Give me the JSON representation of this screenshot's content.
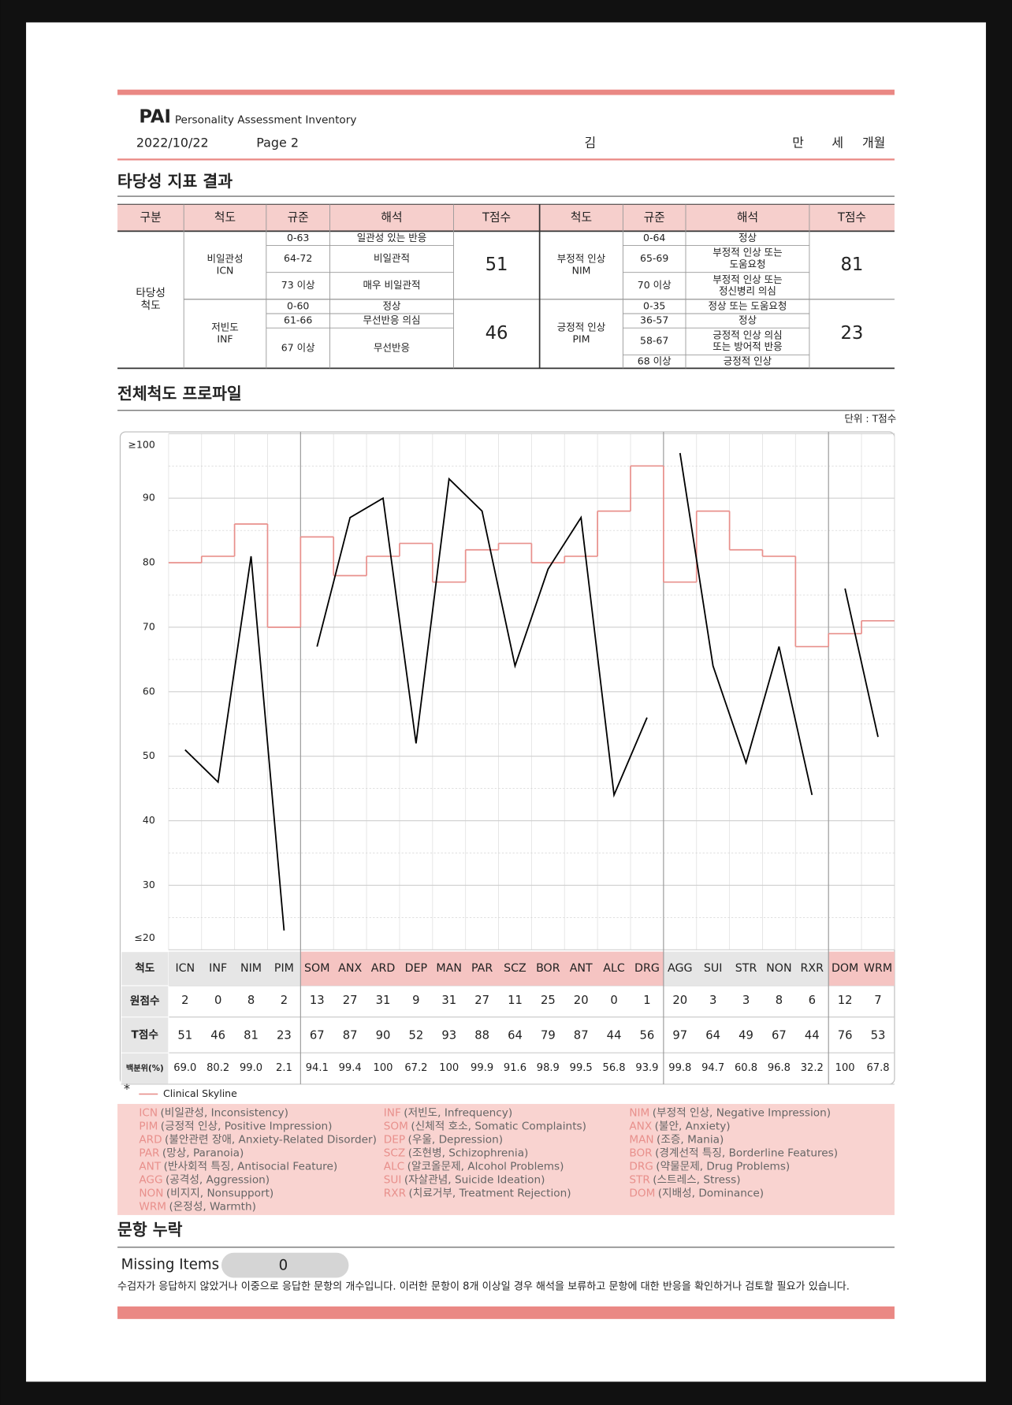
{
  "header": {
    "logo": "PAI",
    "subtitle": "Personality Assessment Inventory",
    "date": "2022/10/22",
    "page": "Page 2",
    "name": "김",
    "age_labels": [
      "만",
      "세",
      "개월"
    ]
  },
  "validity": {
    "title": "타당성 지표 결과",
    "columns": [
      "구분",
      "척도",
      "규준",
      "해석",
      "T점수",
      "척도",
      "규준",
      "해석",
      "T점수"
    ],
    "category": [
      "타당성",
      "척도"
    ],
    "scales": [
      {
        "name": [
          "비일관성",
          "ICN"
        ],
        "t_score": 51,
        "norms": [
          {
            "range": "0-63",
            "interpretation": [
              "일관성 있는 반응"
            ]
          },
          {
            "range": "64-72",
            "interpretation": [
              "비일관적"
            ]
          },
          {
            "range": "73 이상",
            "interpretation": [
              "매우 비일관적"
            ]
          }
        ]
      },
      {
        "name": [
          "저빈도",
          "INF"
        ],
        "t_score": 46,
        "norms": [
          {
            "range": "0-60",
            "interpretation": [
              "정상"
            ]
          },
          {
            "range": "61-66",
            "interpretation": [
              "무선반응 의심"
            ]
          },
          {
            "range": "67 이상",
            "interpretation": [
              "무선반응"
            ]
          }
        ]
      },
      {
        "name": [
          "부정적 인상",
          "NIM"
        ],
        "t_score": 81,
        "norms": [
          {
            "range": "0-64",
            "interpretation": [
              "정상"
            ]
          },
          {
            "range": "65-69",
            "interpretation": [
              "부정적 인상 또는",
              "도움요청"
            ]
          },
          {
            "range": "70 이상",
            "interpretation": [
              "부정적 인상 또는",
              "정신병리 의심"
            ]
          }
        ]
      },
      {
        "name": [
          "긍정적 인상",
          "PIM"
        ],
        "t_score": 23,
        "norms": [
          {
            "range": "0-35",
            "interpretation": [
              "정상 또는 도움요청"
            ]
          },
          {
            "range": "36-57",
            "interpretation": [
              "정상"
            ]
          },
          {
            "range": "58-67",
            "interpretation": [
              "긍정적 인상 의심",
              "또는 방어적 반응"
            ]
          },
          {
            "range": "68 이상",
            "interpretation": [
              "긍정적 인상"
            ]
          }
        ]
      }
    ]
  },
  "chart_data": {
    "type": "line",
    "title": "전체척도 프로파일",
    "unit_label": "단위 : T점수",
    "row_labels": [
      "척도",
      "원점수",
      "T점수",
      "백분위(%)"
    ],
    "categories": [
      [
        "ICN",
        "INF",
        "NIM",
        "PIM"
      ],
      [
        "SOM",
        "ANX",
        "ARD",
        "DEP",
        "MAN",
        "PAR",
        "SCZ",
        "BOR",
        "ANT",
        "ALC",
        "DRG"
      ],
      [
        "AGG",
        "SUI",
        "STR",
        "NON",
        "RXR"
      ],
      [
        "DOM",
        "WRM"
      ]
    ],
    "ylim": [
      20,
      100
    ],
    "yticks": [
      {
        "value": 100,
        "label": "≥100"
      },
      90,
      80,
      70,
      60,
      50,
      40,
      30,
      {
        "value": 20,
        "label": "≤20"
      }
    ],
    "grid": true,
    "series": [
      {
        "name": "Clinical Skyline",
        "color": "#e8908c",
        "values": [
          [
            80,
            81,
            86,
            70
          ],
          [
            84,
            78,
            81,
            83,
            77,
            82,
            83,
            80,
            81,
            88,
            95
          ],
          [
            77,
            88,
            82,
            81,
            67
          ],
          [
            69,
            71
          ]
        ]
      },
      {
        "color": "#000000",
        "values": [
          [
            51,
            46,
            81,
            23
          ],
          [
            67,
            87,
            90,
            52,
            93,
            88,
            64,
            79,
            87,
            44,
            56
          ],
          [
            97,
            64,
            49,
            67,
            44
          ],
          [
            76,
            53
          ]
        ]
      }
    ],
    "raw_scores": [
      [
        2,
        0,
        8,
        2
      ],
      [
        13,
        27,
        31,
        9,
        31,
        27,
        11,
        25,
        20,
        0,
        1
      ],
      [
        20,
        3,
        3,
        8,
        6
      ],
      [
        12,
        7
      ]
    ],
    "percentiles": [
      [
        "69.0",
        "80.2",
        "99.0",
        "2.1"
      ],
      [
        "94.1",
        "99.4",
        "100",
        "67.2",
        "100",
        "99.9",
        "91.6",
        "98.9",
        "99.5",
        "56.8",
        "93.9"
      ],
      [
        "99.8",
        "94.7",
        "60.8",
        "96.8",
        "32.2"
      ],
      [
        "100",
        "67.8"
      ]
    ],
    "legend_marker": "*"
  },
  "abbreviations": [
    [
      {
        "abbr": "ICN",
        "text": "(비일관성, Inconsistency)"
      },
      {
        "abbr": "PIM",
        "text": "(긍정적 인상, Positive Impression)"
      },
      {
        "abbr": "ARD",
        "text": "(불안관련 장애, Anxiety-Related Disorder)"
      },
      {
        "abbr": "PAR",
        "text": "(망상, Paranoia)"
      },
      {
        "abbr": "ANT",
        "text": "(반사회적 특징, Antisocial Feature)"
      },
      {
        "abbr": "AGG",
        "text": "(공격성, Aggression)"
      },
      {
        "abbr": "NON",
        "text": "(비지지, Nonsupport)"
      },
      {
        "abbr": "WRM",
        "text": "(온정성, Warmth)"
      }
    ],
    [
      {
        "abbr": "INF",
        "text": "(저빈도, Infrequency)"
      },
      {
        "abbr": "SOM",
        "text": "(신체적 호소, Somatic Complaints)"
      },
      {
        "abbr": "DEP",
        "text": "(우울, Depression)"
      },
      {
        "abbr": "SCZ",
        "text": "(조현병, Schizophrenia)"
      },
      {
        "abbr": "ALC",
        "text": "(알코올문제, Alcohol Problems)"
      },
      {
        "abbr": "SUI",
        "text": "(자살관념, Suicide Ideation)"
      },
      {
        "abbr": "RXR",
        "text": "(치료거부, Treatment Rejection)"
      }
    ],
    [
      {
        "abbr": "NIM",
        "text": "(부정적 인상, Negative Impression)"
      },
      {
        "abbr": "ANX",
        "text": "(불안, Anxiety)"
      },
      {
        "abbr": "MAN",
        "text": "(조증, Mania)"
      },
      {
        "abbr": "BOR",
        "text": "(경계선적 특징, Borderline Features)"
      },
      {
        "abbr": "DRG",
        "text": "(약물문제, Drug Problems)"
      },
      {
        "abbr": "STR",
        "text": "(스트레스, Stress)"
      },
      {
        "abbr": "DOM",
        "text": "(지배성, Dominance)"
      }
    ]
  ],
  "missing": {
    "title": "문항 누락",
    "label": "Missing Items",
    "count": 0,
    "note": "수검자가 응답하지 않았거나 이중으로 응답한 문항의 개수입니다. 이러한 문항이 8개 이상일 경우 해석을 보류하고 문항에 대한 반응을 확인하거나 검토할 필요가 있습니다."
  }
}
